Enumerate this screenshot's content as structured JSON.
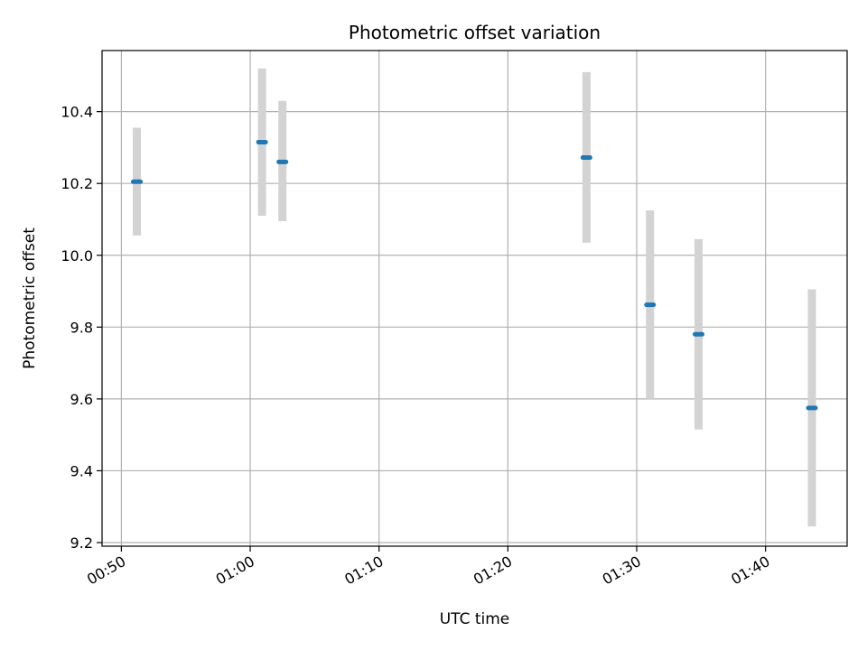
{
  "chart_data": {
    "type": "scatter",
    "title": "Photometric offset variation",
    "xlabel": "UTC time",
    "ylabel": "Photometric offset",
    "x_ticks": [
      "00:50",
      "01:00",
      "01:10",
      "01:20",
      "01:30",
      "01:40"
    ],
    "y_ticks": [
      "9.2",
      "9.4",
      "9.6",
      "9.8",
      "10.0",
      "10.2",
      "10.4"
    ],
    "xlim": [
      "00:48:30",
      "01:46:20"
    ],
    "ylim": [
      9.19,
      10.57
    ],
    "grid": true,
    "colors": {
      "point": "#1f77b4",
      "errorbar": "#d3d3d3",
      "grid": "#b0b0b0"
    },
    "points": [
      {
        "x": "00:51:12",
        "y": 10.205,
        "y_low": 10.055,
        "y_high": 10.355
      },
      {
        "x": "01:00:55",
        "y": 10.315,
        "y_low": 10.11,
        "y_high": 10.52
      },
      {
        "x": "01:02:30",
        "y": 10.26,
        "y_low": 10.095,
        "y_high": 10.43
      },
      {
        "x": "01:26:06",
        "y": 10.272,
        "y_low": 10.035,
        "y_high": 10.51
      },
      {
        "x": "01:31:02",
        "y": 9.862,
        "y_low": 9.6,
        "y_high": 10.125
      },
      {
        "x": "01:34:48",
        "y": 9.78,
        "y_low": 9.515,
        "y_high": 10.045
      },
      {
        "x": "01:43:36",
        "y": 9.575,
        "y_low": 9.245,
        "y_high": 9.905
      }
    ]
  }
}
